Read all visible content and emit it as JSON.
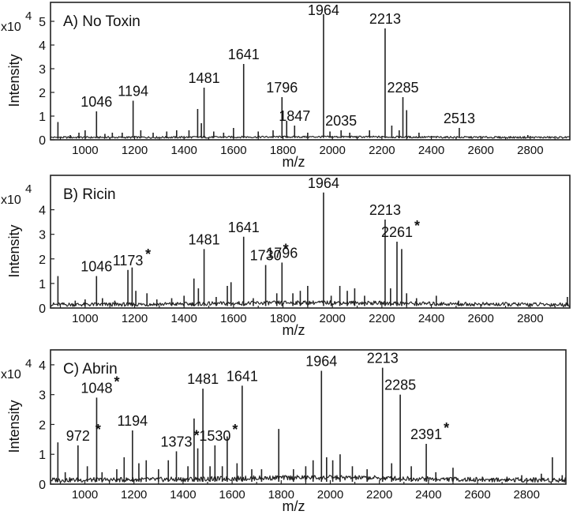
{
  "chart_data": [
    {
      "type": "line",
      "panel_label": "A) No Toxin",
      "exponent_label": "x10",
      "exponent_power": "4",
      "xlabel": "m/z",
      "ylabel": "Intensity",
      "xlim": [
        860,
        2960
      ],
      "ylim": [
        0,
        5.8
      ],
      "x_ticks": [
        1000,
        1200,
        1400,
        1600,
        1800,
        2000,
        2200,
        2400,
        2600,
        2800
      ],
      "x_tick_labels": [
        "1000",
        "1200",
        "1400",
        "1600",
        "1800",
        "2000",
        "2200",
        "2400",
        "2600",
        "2800"
      ],
      "y_ticks": [
        0,
        1,
        2,
        3,
        4,
        5
      ],
      "y_tick_labels": [
        "0",
        "1",
        "2",
        "3",
        "4",
        "5"
      ],
      "peaks": [
        {
          "x": 890,
          "y": 0.75
        },
        {
          "x": 940,
          "y": 0.2
        },
        {
          "x": 975,
          "y": 0.3
        },
        {
          "x": 1000,
          "y": 0.4
        },
        {
          "x": 1046,
          "y": 1.2
        },
        {
          "x": 1080,
          "y": 0.25
        },
        {
          "x": 1110,
          "y": 0.3
        },
        {
          "x": 1150,
          "y": 0.3
        },
        {
          "x": 1194,
          "y": 1.65
        },
        {
          "x": 1225,
          "y": 0.4
        },
        {
          "x": 1275,
          "y": 0.3
        },
        {
          "x": 1330,
          "y": 0.35
        },
        {
          "x": 1370,
          "y": 0.4
        },
        {
          "x": 1420,
          "y": 0.4
        },
        {
          "x": 1455,
          "y": 1.3
        },
        {
          "x": 1470,
          "y": 0.7
        },
        {
          "x": 1481,
          "y": 2.2
        },
        {
          "x": 1520,
          "y": 0.35
        },
        {
          "x": 1560,
          "y": 0.3
        },
        {
          "x": 1600,
          "y": 0.5
        },
        {
          "x": 1641,
          "y": 3.2
        },
        {
          "x": 1700,
          "y": 0.35
        },
        {
          "x": 1760,
          "y": 0.4
        },
        {
          "x": 1796,
          "y": 1.8
        },
        {
          "x": 1815,
          "y": 0.8
        },
        {
          "x": 1847,
          "y": 0.6
        },
        {
          "x": 1900,
          "y": 0.3
        },
        {
          "x": 1964,
          "y": 5.3
        },
        {
          "x": 1990,
          "y": 0.35
        },
        {
          "x": 2035,
          "y": 0.4
        },
        {
          "x": 2070,
          "y": 0.3
        },
        {
          "x": 2150,
          "y": 0.4
        },
        {
          "x": 2213,
          "y": 4.7
        },
        {
          "x": 2240,
          "y": 0.6
        },
        {
          "x": 2270,
          "y": 0.4
        },
        {
          "x": 2285,
          "y": 1.8
        },
        {
          "x": 2300,
          "y": 1.25
        },
        {
          "x": 2350,
          "y": 0.3
        },
        {
          "x": 2513,
          "y": 0.5
        },
        {
          "x": 2790,
          "y": 0.2
        }
      ],
      "annotations": [
        {
          "x": 1046,
          "y": 1.2,
          "text": "1046",
          "star": false
        },
        {
          "x": 1194,
          "y": 1.65,
          "text": "1194",
          "star": false
        },
        {
          "x": 1481,
          "y": 2.2,
          "text": "1481",
          "star": false
        },
        {
          "x": 1641,
          "y": 3.2,
          "text": "1641",
          "star": false
        },
        {
          "x": 1796,
          "y": 1.8,
          "text": "1796",
          "star": false
        },
        {
          "x": 1847,
          "y": 0.6,
          "text": "1847",
          "star": false
        },
        {
          "x": 1964,
          "y": 5.3,
          "text": "1964",
          "star": false
        },
        {
          "x": 2035,
          "y": 0.4,
          "text": "2035",
          "star": false
        },
        {
          "x": 2213,
          "y": 4.7,
          "text": "2213",
          "star": false
        },
        {
          "x": 2285,
          "y": 1.8,
          "text": "2285",
          "star": false
        },
        {
          "x": 2513,
          "y": 0.5,
          "text": "2513",
          "star": false
        }
      ]
    },
    {
      "type": "line",
      "panel_label": "B) Ricin",
      "exponent_label": "x10",
      "exponent_power": "4",
      "xlabel": "m/z",
      "ylabel": "Intensity",
      "xlim": [
        860,
        2960
      ],
      "ylim": [
        0,
        5.4
      ],
      "x_ticks": [
        1000,
        1200,
        1400,
        1600,
        1800,
        2000,
        2200,
        2400,
        2600,
        2800
      ],
      "x_tick_labels": [
        "1000",
        "1200",
        "1400",
        "1600",
        "1800",
        "2000",
        "2200",
        "2400",
        "2600",
        "2800"
      ],
      "y_ticks": [
        0,
        1,
        2,
        3,
        4
      ],
      "y_tick_labels": [
        "0",
        "1",
        "2",
        "3",
        "4"
      ],
      "peaks": [
        {
          "x": 890,
          "y": 1.3
        },
        {
          "x": 960,
          "y": 0.3
        },
        {
          "x": 1000,
          "y": 0.35
        },
        {
          "x": 1046,
          "y": 1.3
        },
        {
          "x": 1070,
          "y": 0.4
        },
        {
          "x": 1120,
          "y": 0.3
        },
        {
          "x": 1173,
          "y": 1.55
        },
        {
          "x": 1190,
          "y": 1.65
        },
        {
          "x": 1205,
          "y": 0.7
        },
        {
          "x": 1250,
          "y": 0.6
        },
        {
          "x": 1290,
          "y": 0.35
        },
        {
          "x": 1350,
          "y": 0.4
        },
        {
          "x": 1400,
          "y": 0.5
        },
        {
          "x": 1440,
          "y": 1.2
        },
        {
          "x": 1458,
          "y": 0.8
        },
        {
          "x": 1481,
          "y": 2.4
        },
        {
          "x": 1530,
          "y": 0.45
        },
        {
          "x": 1575,
          "y": 0.9
        },
        {
          "x": 1590,
          "y": 1.05
        },
        {
          "x": 1641,
          "y": 2.9
        },
        {
          "x": 1680,
          "y": 0.4
        },
        {
          "x": 1730,
          "y": 1.75
        },
        {
          "x": 1775,
          "y": 0.6
        },
        {
          "x": 1796,
          "y": 1.85
        },
        {
          "x": 1840,
          "y": 0.6
        },
        {
          "x": 1870,
          "y": 0.7
        },
        {
          "x": 1900,
          "y": 0.9
        },
        {
          "x": 1964,
          "y": 4.7
        },
        {
          "x": 1995,
          "y": 0.5
        },
        {
          "x": 2030,
          "y": 0.9
        },
        {
          "x": 2060,
          "y": 0.7
        },
        {
          "x": 2090,
          "y": 0.8
        },
        {
          "x": 2130,
          "y": 0.5
        },
        {
          "x": 2213,
          "y": 3.6
        },
        {
          "x": 2235,
          "y": 0.8
        },
        {
          "x": 2261,
          "y": 2.7
        },
        {
          "x": 2280,
          "y": 2.4
        },
        {
          "x": 2300,
          "y": 0.6
        },
        {
          "x": 2340,
          "y": 0.4
        },
        {
          "x": 2420,
          "y": 0.5
        },
        {
          "x": 2510,
          "y": 0.3
        },
        {
          "x": 2950,
          "y": 0.45
        }
      ],
      "annotations": [
        {
          "x": 1046,
          "y": 1.3,
          "text": "1046",
          "star": false
        },
        {
          "x": 1173,
          "y": 1.55,
          "text": "1173",
          "star": true
        },
        {
          "x": 1481,
          "y": 2.4,
          "text": "1481",
          "star": false
        },
        {
          "x": 1641,
          "y": 2.9,
          "text": "1641",
          "star": false
        },
        {
          "x": 1730,
          "y": 1.75,
          "text": "1730",
          "star": true
        },
        {
          "x": 1796,
          "y": 1.85,
          "text": "1796",
          "star": false
        },
        {
          "x": 1964,
          "y": 4.7,
          "text": "1964",
          "star": false
        },
        {
          "x": 2213,
          "y": 3.6,
          "text": "2213",
          "star": false
        },
        {
          "x": 2261,
          "y": 2.7,
          "text": "2261",
          "star": true
        }
      ]
    },
    {
      "type": "line",
      "panel_label": "C) Abrin",
      "exponent_label": "x10",
      "exponent_power": "4",
      "xlabel": "m/z",
      "ylabel": "Intensity",
      "xlim": [
        860,
        2960
      ],
      "ylim": [
        0,
        4.5
      ],
      "x_ticks": [
        1000,
        1200,
        1400,
        1600,
        1800,
        2000,
        2200,
        2400,
        2600,
        2800
      ],
      "x_tick_labels": [
        "1000",
        "1200",
        "1400",
        "1600",
        "1800",
        "2000",
        "2200",
        "2400",
        "2600",
        "2800"
      ],
      "y_ticks": [
        0,
        1,
        2,
        3,
        4
      ],
      "y_tick_labels": [
        "0",
        "1",
        "2",
        "3",
        "4"
      ],
      "peaks": [
        {
          "x": 890,
          "y": 1.4
        },
        {
          "x": 920,
          "y": 0.4
        },
        {
          "x": 972,
          "y": 1.3
        },
        {
          "x": 1010,
          "y": 0.6
        },
        {
          "x": 1048,
          "y": 2.9
        },
        {
          "x": 1070,
          "y": 0.4
        },
        {
          "x": 1130,
          "y": 0.5
        },
        {
          "x": 1160,
          "y": 0.9
        },
        {
          "x": 1194,
          "y": 1.8
        },
        {
          "x": 1220,
          "y": 0.7
        },
        {
          "x": 1250,
          "y": 0.8
        },
        {
          "x": 1300,
          "y": 0.5
        },
        {
          "x": 1340,
          "y": 0.8
        },
        {
          "x": 1373,
          "y": 1.1
        },
        {
          "x": 1420,
          "y": 0.6
        },
        {
          "x": 1445,
          "y": 2.2
        },
        {
          "x": 1460,
          "y": 1.2
        },
        {
          "x": 1481,
          "y": 3.2
        },
        {
          "x": 1510,
          "y": 0.6
        },
        {
          "x": 1530,
          "y": 1.3
        },
        {
          "x": 1560,
          "y": 0.6
        },
        {
          "x": 1580,
          "y": 1.6
        },
        {
          "x": 1620,
          "y": 0.7
        },
        {
          "x": 1641,
          "y": 3.3
        },
        {
          "x": 1680,
          "y": 0.5
        },
        {
          "x": 1720,
          "y": 0.5
        },
        {
          "x": 1790,
          "y": 1.85
        },
        {
          "x": 1850,
          "y": 0.5
        },
        {
          "x": 1900,
          "y": 0.6
        },
        {
          "x": 1930,
          "y": 0.8
        },
        {
          "x": 1964,
          "y": 3.8
        },
        {
          "x": 1985,
          "y": 0.9
        },
        {
          "x": 2010,
          "y": 0.8
        },
        {
          "x": 2040,
          "y": 1.0
        },
        {
          "x": 2090,
          "y": 0.6
        },
        {
          "x": 2150,
          "y": 0.5
        },
        {
          "x": 2213,
          "y": 3.9
        },
        {
          "x": 2250,
          "y": 0.7
        },
        {
          "x": 2285,
          "y": 3.0
        },
        {
          "x": 2330,
          "y": 0.6
        },
        {
          "x": 2391,
          "y": 1.35
        },
        {
          "x": 2430,
          "y": 0.4
        },
        {
          "x": 2500,
          "y": 0.55
        },
        {
          "x": 2620,
          "y": 0.25
        },
        {
          "x": 2660,
          "y": 0.2
        },
        {
          "x": 2720,
          "y": 0.25
        },
        {
          "x": 2780,
          "y": 0.3
        },
        {
          "x": 2860,
          "y": 0.35
        },
        {
          "x": 2905,
          "y": 0.9
        },
        {
          "x": 2945,
          "y": 0.3
        }
      ],
      "annotations": [
        {
          "x": 972,
          "y": 1.3,
          "text": "972",
          "star": true
        },
        {
          "x": 1048,
          "y": 2.9,
          "text": "1048",
          "star": true
        },
        {
          "x": 1194,
          "y": 1.8,
          "text": "1194",
          "star": false
        },
        {
          "x": 1373,
          "y": 1.1,
          "text": "1373",
          "star": true
        },
        {
          "x": 1481,
          "y": 3.2,
          "text": "1481",
          "star": false
        },
        {
          "x": 1530,
          "y": 1.3,
          "text": "1530",
          "star": true
        },
        {
          "x": 1641,
          "y": 3.3,
          "text": "1641",
          "star": false
        },
        {
          "x": 1964,
          "y": 3.8,
          "text": "1964",
          "star": false
        },
        {
          "x": 2213,
          "y": 3.9,
          "text": "2213",
          "star": false
        },
        {
          "x": 2285,
          "y": 3.0,
          "text": "2285",
          "star": false
        },
        {
          "x": 2391,
          "y": 1.35,
          "text": "2391",
          "star": true
        }
      ]
    }
  ]
}
